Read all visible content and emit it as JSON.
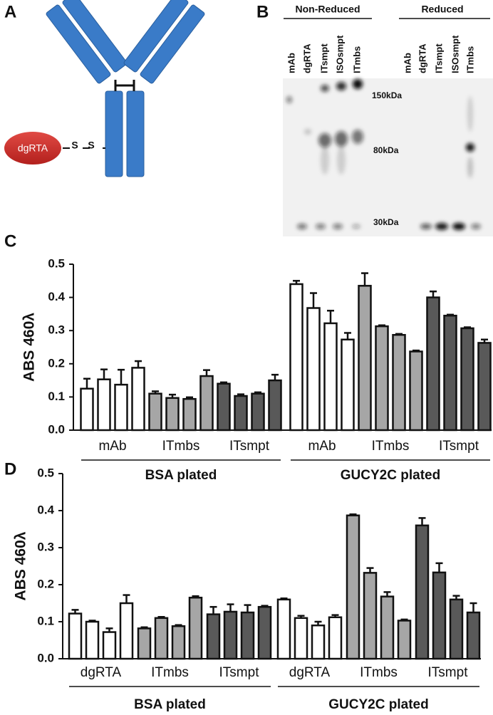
{
  "panel_a": {
    "letter": "A",
    "label": "dgRTA",
    "bond": [
      "S",
      "S"
    ]
  },
  "panel_b": {
    "letter": "B",
    "groups": [
      {
        "name": "Non-Reduced",
        "lanes": [
          "mAb",
          "dgRTA",
          "ITsmpt",
          "ISOsmpt",
          "ITmbs"
        ]
      },
      {
        "name": "Reduced",
        "lanes": [
          "mAb",
          "dgRTA",
          "ITsmpt",
          "ISOsmpt",
          "ITmbs"
        ]
      }
    ],
    "markers": [
      "150kDa",
      "80kDa",
      "30kDa"
    ]
  },
  "chart_data": [
    {
      "type": "bar",
      "letter": "C",
      "y_label": "ABS 460λ",
      "ylim": [
        0,
        0.5
      ],
      "yticks": [
        {
          "value": 0,
          "label": "0.0"
        },
        0.1,
        0.2,
        0.3,
        0.4,
        0.5
      ],
      "plates": [
        "BSA plated",
        "GUCY2C plated"
      ],
      "groups": [
        {
          "name": "mAb",
          "color": "#ffffff",
          "values": [
            0.125,
            0.153,
            0.137,
            0.188
          ],
          "errors": [
            0.03,
            0.03,
            0.045,
            0.02
          ]
        },
        {
          "name": "ITmbs",
          "color": "#a6a6a6",
          "values": [
            0.11,
            0.097,
            0.094,
            0.163
          ],
          "errors": [
            0.007,
            0.01,
            0.005,
            0.018
          ]
        },
        {
          "name": "ITsmpt",
          "color": "#595959",
          "values": [
            0.14,
            0.103,
            0.11,
            0.15
          ],
          "errors": [
            0.004,
            0.005,
            0.004,
            0.017
          ]
        },
        {
          "name": "mAb",
          "color": "#ffffff",
          "values": [
            0.44,
            0.368,
            0.322,
            0.273
          ],
          "errors": [
            0.01,
            0.045,
            0.038,
            0.02
          ]
        },
        {
          "name": "ITmbs",
          "color": "#a6a6a6",
          "values": [
            0.435,
            0.313,
            0.287,
            0.237
          ],
          "errors": [
            0.038,
            0.003,
            0.003,
            0.003
          ]
        },
        {
          "name": "ITsmpt",
          "color": "#595959",
          "values": [
            0.4,
            0.345,
            0.307,
            0.263
          ],
          "errors": [
            0.018,
            0.003,
            0.003,
            0.01
          ]
        }
      ]
    },
    {
      "type": "bar",
      "letter": "D",
      "y_label": "ABS 460λ",
      "ylim": [
        0,
        0.5
      ],
      "yticks": [
        {
          "value": 0,
          "label": "0.0"
        },
        0.1,
        0.2,
        0.3,
        0.4,
        0.5
      ],
      "plates": [
        "BSA plated",
        "GUCY2C plated"
      ],
      "groups": [
        {
          "name": "dgRTA",
          "color": "#ffffff",
          "values": [
            0.122,
            0.1,
            0.072,
            0.15
          ],
          "errors": [
            0.01,
            0.003,
            0.01,
            0.022
          ]
        },
        {
          "name": "ITmbs",
          "color": "#a6a6a6",
          "values": [
            0.082,
            0.11,
            0.088,
            0.165
          ],
          "errors": [
            0.003,
            0.003,
            0.003,
            0.004
          ]
        },
        {
          "name": "ITsmpt",
          "color": "#595959",
          "values": [
            0.12,
            0.127,
            0.125,
            0.14
          ],
          "errors": [
            0.02,
            0.02,
            0.02,
            0.003
          ]
        },
        {
          "name": "dgRTA",
          "color": "#ffffff",
          "values": [
            0.16,
            0.11,
            0.09,
            0.112
          ],
          "errors": [
            0.003,
            0.006,
            0.01,
            0.006
          ]
        },
        {
          "name": "ITmbs",
          "color": "#a6a6a6",
          "values": [
            0.387,
            0.232,
            0.168,
            0.103
          ],
          "errors": [
            0.003,
            0.013,
            0.012,
            0.003
          ]
        },
        {
          "name": "ITsmpt",
          "color": "#595959",
          "values": [
            0.36,
            0.233,
            0.16,
            0.125
          ],
          "errors": [
            0.02,
            0.025,
            0.01,
            0.025
          ]
        }
      ]
    }
  ]
}
